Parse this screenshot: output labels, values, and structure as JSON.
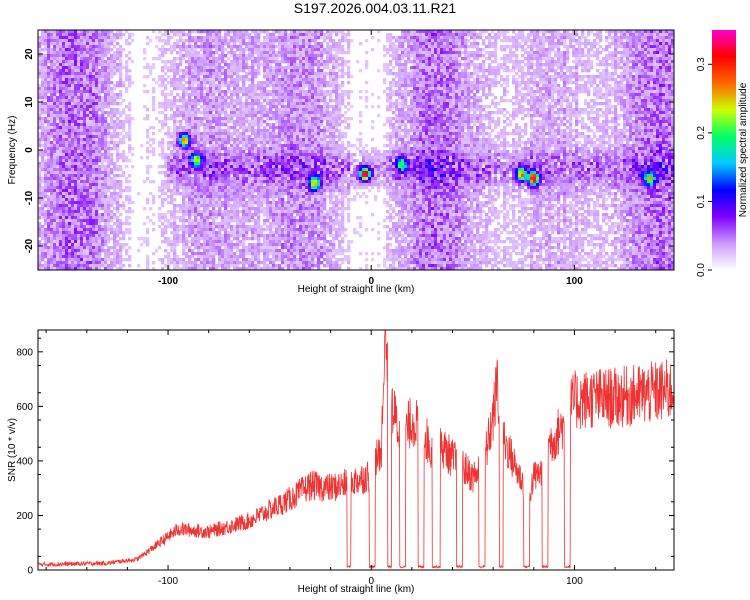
{
  "title": "S197.2026.004.03.11.R21",
  "chart_data": [
    {
      "type": "heatmap",
      "xlabel": "Height of straight line (km)",
      "ylabel": "Frequency (Hz)",
      "xlim": [
        -164,
        149
      ],
      "ylim": [
        -25,
        25
      ],
      "x_ticks": [
        -100,
        0,
        100
      ],
      "y_ticks": [
        -20,
        -10,
        0,
        10,
        20
      ],
      "colorbar": {
        "label": "Normalized spectral amplitude",
        "range": [
          0.0,
          0.35
        ],
        "ticks": [
          0.0,
          0.1,
          0.2,
          0.3
        ],
        "colormap": [
          "#ffffff",
          "#cc99ff",
          "#7f00ff",
          "#0000ff",
          "#00ccff",
          "#00ff66",
          "#ccff00",
          "#ff6600",
          "#ff0000",
          "#ff00cc"
        ]
      },
      "hotspots": [
        {
          "x": -92,
          "y": 2,
          "v": 0.25
        },
        {
          "x": -86,
          "y": -2,
          "v": 0.2
        },
        {
          "x": -28,
          "y": -7,
          "v": 0.22
        },
        {
          "x": -3,
          "y": -5,
          "v": 0.33
        },
        {
          "x": 15,
          "y": -3,
          "v": 0.18
        },
        {
          "x": 74,
          "y": -5,
          "v": 0.24
        },
        {
          "x": 80,
          "y": -6,
          "v": 0.32
        },
        {
          "x": 137,
          "y": -6,
          "v": 0.2
        }
      ]
    },
    {
      "type": "line",
      "xlabel": "Height of straight line (km)",
      "ylabel": "SNR (10 * v/v)",
      "xlim": [
        -164,
        149
      ],
      "ylim": [
        0,
        880
      ],
      "x_ticks": [
        -100,
        0,
        100
      ],
      "y_ticks": [
        0,
        200,
        400,
        600,
        800
      ],
      "series": [
        {
          "color": "#ee3333",
          "x": [
            -164,
            -130,
            -115,
            -95,
            -80,
            -60,
            -40,
            -30,
            -20,
            -10,
            0,
            5,
            7,
            10,
            15,
            20,
            25,
            30,
            35,
            40,
            45,
            50,
            55,
            60,
            62,
            64,
            68,
            72,
            76,
            78,
            80,
            84,
            88,
            90,
            93,
            96,
            98,
            100,
            110,
            120,
            130,
            140,
            149
          ],
          "y": [
            20,
            25,
            40,
            150,
            140,
            180,
            260,
            310,
            300,
            320,
            350,
            450,
            880,
            600,
            480,
            550,
            520,
            430,
            450,
            410,
            380,
            340,
            380,
            560,
            690,
            500,
            430,
            360,
            300,
            280,
            340,
            360,
            470,
            480,
            520,
            550,
            600,
            620,
            630,
            630,
            640,
            650,
            660
          ],
          "dropouts": [
            [
              -12,
              -10
            ],
            [
              -1,
              2
            ],
            [
              8,
              10
            ],
            [
              14,
              17
            ],
            [
              23,
              26
            ],
            [
              30,
              34
            ],
            [
              42,
              45
            ],
            [
              53,
              56
            ],
            [
              63,
              65
            ],
            [
              75,
              78
            ],
            [
              84,
              87
            ],
            [
              95,
              98
            ]
          ]
        }
      ]
    }
  ]
}
